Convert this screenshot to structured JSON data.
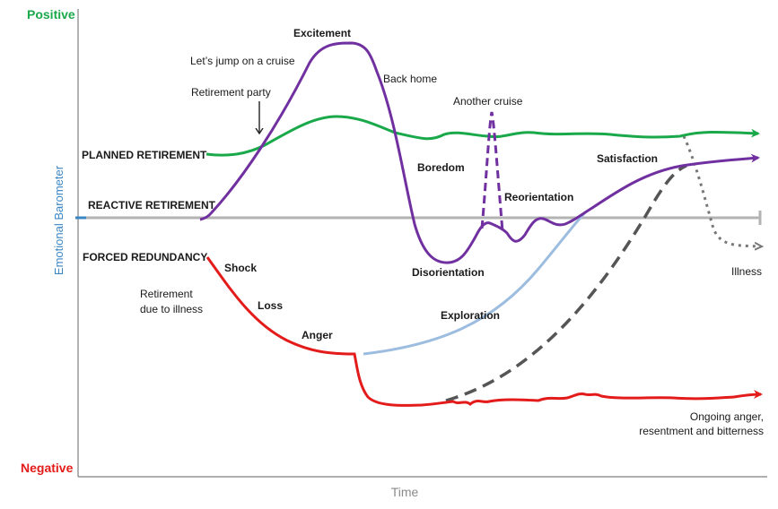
{
  "axes": {
    "positive": "Positive",
    "negative": "Negative",
    "y_label": "Emotional Barometer",
    "x_label": "Time"
  },
  "curves": {
    "planned": "PLANNED RETIREMENT",
    "reactive": "REACTIVE RETIREMENT",
    "forced": "FORCED REDUNDANCY"
  },
  "stages": {
    "excitement": "Excitement",
    "cruise": "Let’s jump on a cruise",
    "party": "Retirement party",
    "back_home": "Back home",
    "another_cruise": "Another cruise",
    "boredom": "Boredom",
    "reorientation": "Reorientation",
    "satisfaction": "Satisfaction",
    "disorientation": "Disorientation",
    "illness": "Illness",
    "shock": "Shock",
    "illness_retirement_1": "Retirement",
    "illness_retirement_2": "due to illness",
    "loss": "Loss",
    "anger": "Anger",
    "exploration": "Exploration",
    "ongoing_1": "Ongoing anger,",
    "ongoing_2": "resentment and bitterness"
  },
  "colors": {
    "planned": "#1aa94a",
    "reactive": "#7030a0",
    "forced": "#e31b1b",
    "exploration": "#9dbde0",
    "recovery_dashed": "#555555",
    "illness_dotted": "#777777",
    "baseline": "#b3b3b3",
    "axis": "#7f7f7f"
  }
}
